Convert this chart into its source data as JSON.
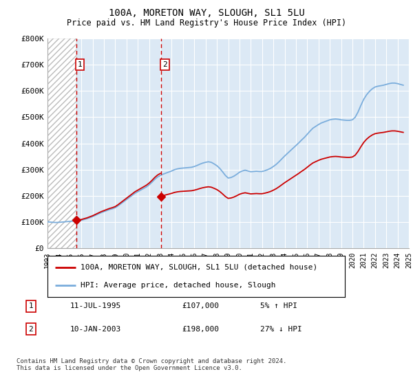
{
  "title": "100A, MORETON WAY, SLOUGH, SL1 5LU",
  "subtitle": "Price paid vs. HM Land Registry's House Price Index (HPI)",
  "ylim": [
    0,
    800000
  ],
  "yticks": [
    0,
    100000,
    200000,
    300000,
    400000,
    500000,
    600000,
    700000,
    800000
  ],
  "ytick_labels": [
    "£0",
    "£100K",
    "£200K",
    "£300K",
    "£400K",
    "£500K",
    "£600K",
    "£700K",
    "£800K"
  ],
  "x_start_year": 1993,
  "x_end_year": 2025,
  "sale1_date": 1995.53,
  "sale1_price": 107000,
  "sale2_date": 2003.03,
  "sale2_price": 198000,
  "hpi_color": "#7aaddc",
  "price_color": "#cc0000",
  "vline_color": "#cc0000",
  "bg_color": "#dce9f5",
  "legend_line1": "100A, MORETON WAY, SLOUGH, SL1 5LU (detached house)",
  "legend_line2": "HPI: Average price, detached house, Slough",
  "table_row1": [
    "1",
    "11-JUL-1995",
    "£107,000",
    "5% ↑ HPI"
  ],
  "table_row2": [
    "2",
    "10-JAN-2003",
    "£198,000",
    "27% ↓ HPI"
  ],
  "footer": "Contains HM Land Registry data © Crown copyright and database right 2024.\nThis data is licensed under the Open Government Licence v3.0.",
  "hpi_data_x": [
    1993.0,
    1993.25,
    1993.5,
    1993.75,
    1994.0,
    1994.25,
    1994.5,
    1994.75,
    1995.0,
    1995.25,
    1995.5,
    1995.75,
    1996.0,
    1996.25,
    1996.5,
    1996.75,
    1997.0,
    1997.25,
    1997.5,
    1997.75,
    1998.0,
    1998.25,
    1998.5,
    1998.75,
    1999.0,
    1999.25,
    1999.5,
    1999.75,
    2000.0,
    2000.25,
    2000.5,
    2000.75,
    2001.0,
    2001.25,
    2001.5,
    2001.75,
    2002.0,
    2002.25,
    2002.5,
    2002.75,
    2003.0,
    2003.25,
    2003.5,
    2003.75,
    2004.0,
    2004.25,
    2004.5,
    2004.75,
    2005.0,
    2005.25,
    2005.5,
    2005.75,
    2006.0,
    2006.25,
    2006.5,
    2006.75,
    2007.0,
    2007.25,
    2007.5,
    2007.75,
    2008.0,
    2008.25,
    2008.5,
    2008.75,
    2009.0,
    2009.25,
    2009.5,
    2009.75,
    2010.0,
    2010.25,
    2010.5,
    2010.75,
    2011.0,
    2011.25,
    2011.5,
    2011.75,
    2012.0,
    2012.25,
    2012.5,
    2012.75,
    2013.0,
    2013.25,
    2013.5,
    2013.75,
    2014.0,
    2014.25,
    2014.5,
    2014.75,
    2015.0,
    2015.25,
    2015.5,
    2015.75,
    2016.0,
    2016.25,
    2016.5,
    2016.75,
    2017.0,
    2017.25,
    2017.5,
    2017.75,
    2018.0,
    2018.25,
    2018.5,
    2018.75,
    2019.0,
    2019.25,
    2019.5,
    2019.75,
    2020.0,
    2020.25,
    2020.5,
    2020.75,
    2021.0,
    2021.25,
    2021.5,
    2021.75,
    2022.0,
    2022.25,
    2022.5,
    2022.75,
    2023.0,
    2023.25,
    2023.5,
    2023.75,
    2024.0,
    2024.25,
    2024.5
  ],
  "hpi_data_y": [
    101000,
    100000,
    99000,
    98500,
    99000,
    100000,
    101000,
    102000,
    103000,
    103500,
    104000,
    105000,
    107000,
    110000,
    113000,
    117000,
    121000,
    126000,
    131000,
    136000,
    140000,
    144000,
    148000,
    151000,
    155000,
    162000,
    170000,
    178000,
    186000,
    194000,
    202000,
    210000,
    216000,
    222000,
    228000,
    234000,
    242000,
    252000,
    263000,
    272000,
    278000,
    283000,
    287000,
    291000,
    295000,
    300000,
    303000,
    305000,
    306000,
    307000,
    308000,
    309000,
    312000,
    316000,
    321000,
    325000,
    328000,
    330000,
    328000,
    322000,
    315000,
    305000,
    292000,
    278000,
    268000,
    270000,
    275000,
    282000,
    290000,
    295000,
    298000,
    295000,
    292000,
    293000,
    294000,
    293000,
    293000,
    296000,
    300000,
    305000,
    312000,
    320000,
    330000,
    341000,
    352000,
    362000,
    372000,
    382000,
    392000,
    402000,
    413000,
    423000,
    435000,
    447000,
    458000,
    465000,
    472000,
    478000,
    482000,
    486000,
    490000,
    492000,
    493000,
    492000,
    490000,
    489000,
    488000,
    488000,
    490000,
    500000,
    520000,
    545000,
    568000,
    585000,
    598000,
    608000,
    615000,
    618000,
    620000,
    622000,
    625000,
    628000,
    630000,
    630000,
    628000,
    625000,
    622000
  ]
}
